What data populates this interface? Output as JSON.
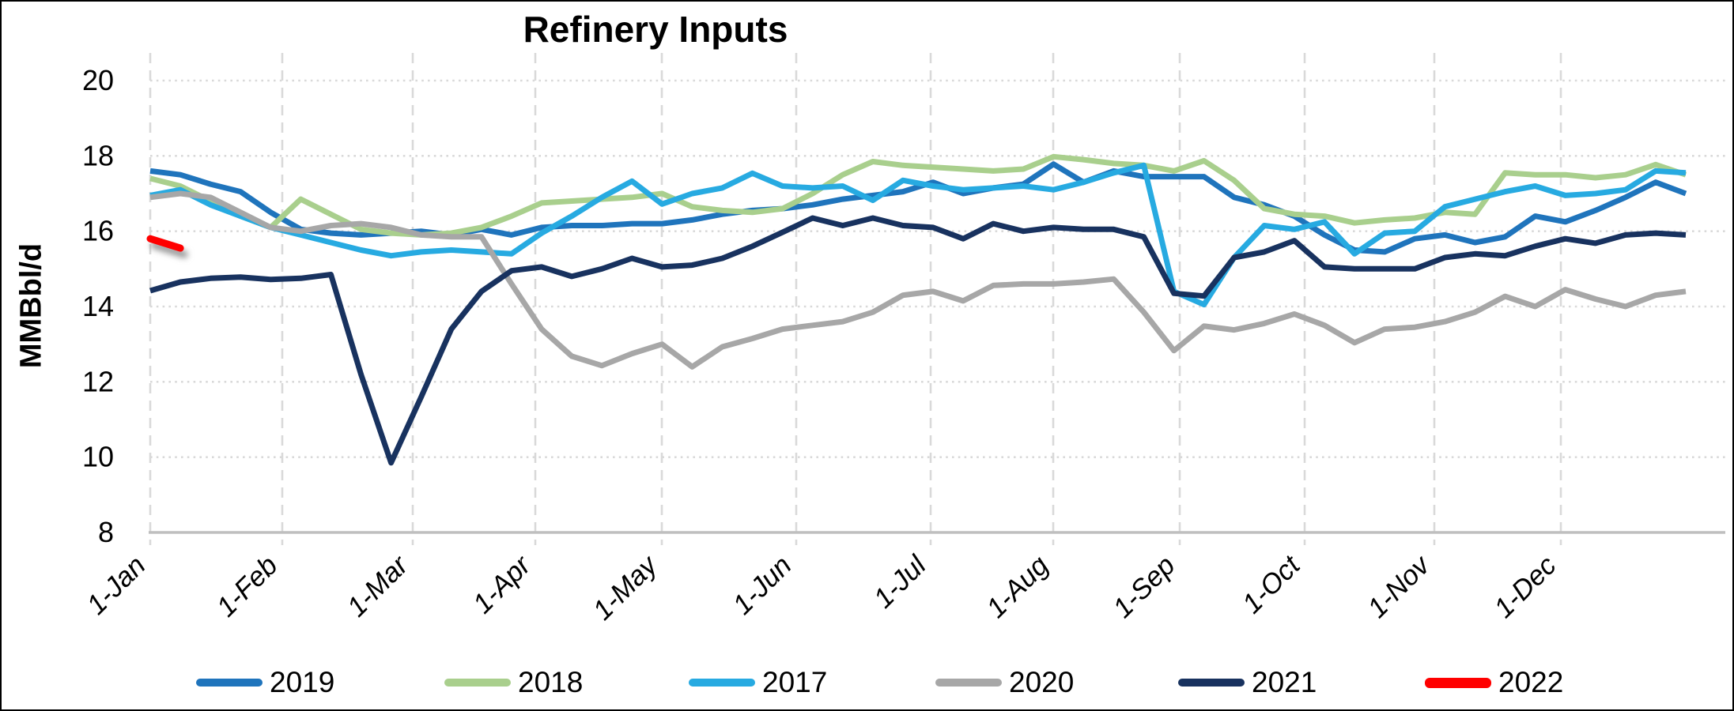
{
  "chart_data": {
    "type": "line",
    "title": "Refinery Inputs",
    "ylabel": "MMBbl/d",
    "ylim": [
      8,
      20
    ],
    "y_ticks": [
      8,
      10,
      12,
      14,
      16,
      18,
      20
    ],
    "x_tick_labels": [
      "1-Jan",
      "1-Feb",
      "1-Mar",
      "1-Apr",
      "1-May",
      "1-Jun",
      "1-Jul",
      "1-Aug",
      "1-Sep",
      "1-Oct",
      "1-Nov",
      "1-Dec"
    ],
    "x_unit": "weekly observations across one year",
    "grid": "vertical dashed monthly gridlines, horizontal dotted gridlines every 2 units",
    "legend_position": "bottom",
    "series": [
      {
        "name": "2019",
        "color": "#1F74BC",
        "values": [
          17.6,
          17.5,
          17.25,
          17.05,
          16.5,
          16.05,
          15.95,
          15.9,
          15.95,
          16.0,
          15.9,
          16.05,
          15.9,
          16.1,
          16.15,
          16.15,
          16.2,
          16.2,
          16.3,
          16.45,
          16.55,
          16.6,
          16.7,
          16.85,
          16.95,
          17.05,
          17.3,
          17.0,
          17.15,
          17.25,
          17.78,
          17.3,
          17.6,
          17.45,
          17.45,
          17.45,
          16.9,
          16.7,
          16.4,
          15.9,
          15.5,
          15.45,
          15.8,
          15.9,
          15.7,
          15.85,
          16.4,
          16.25,
          16.55,
          16.9,
          17.3,
          17.0
        ]
      },
      {
        "name": "2018",
        "color": "#A9CF8D",
        "values": [
          17.4,
          17.2,
          16.8,
          16.4,
          16.1,
          16.85,
          16.45,
          16.05,
          15.95,
          15.9,
          15.95,
          16.1,
          16.4,
          16.75,
          16.8,
          16.85,
          16.9,
          17.0,
          16.65,
          16.55,
          16.5,
          16.6,
          17.0,
          17.5,
          17.85,
          17.75,
          17.7,
          17.65,
          17.6,
          17.65,
          17.98,
          17.9,
          17.8,
          17.75,
          17.6,
          17.87,
          17.35,
          16.6,
          16.45,
          16.4,
          16.22,
          16.3,
          16.35,
          16.5,
          16.45,
          17.55,
          17.5,
          17.5,
          17.42,
          17.5,
          17.77,
          17.5
        ]
      },
      {
        "name": "2017",
        "color": "#27AAE1",
        "values": [
          16.95,
          17.1,
          16.7,
          16.4,
          16.1,
          15.9,
          15.7,
          15.5,
          15.35,
          15.45,
          15.5,
          15.45,
          15.4,
          15.95,
          16.4,
          16.9,
          17.33,
          16.72,
          17.0,
          17.15,
          17.54,
          17.2,
          17.15,
          17.2,
          16.82,
          17.35,
          17.2,
          17.1,
          17.15,
          17.2,
          17.1,
          17.3,
          17.55,
          17.75,
          14.4,
          14.05,
          15.3,
          16.15,
          16.05,
          16.25,
          15.4,
          15.95,
          16.0,
          16.65,
          16.85,
          17.05,
          17.2,
          16.95,
          17.0,
          17.1,
          17.6,
          17.55
        ]
      },
      {
        "name": "2020",
        "color": "#A7A7A7",
        "values": [
          16.9,
          17.0,
          16.9,
          16.5,
          16.1,
          16.0,
          16.15,
          16.2,
          16.1,
          15.9,
          15.85,
          15.85,
          14.6,
          13.4,
          12.68,
          12.43,
          12.75,
          13.0,
          12.4,
          12.93,
          13.15,
          13.4,
          13.5,
          13.6,
          13.85,
          14.3,
          14.4,
          14.15,
          14.56,
          14.6,
          14.6,
          14.65,
          14.73,
          13.85,
          12.83,
          13.48,
          13.38,
          13.55,
          13.8,
          13.5,
          13.04,
          13.4,
          13.45,
          13.6,
          13.85,
          14.27,
          14.0,
          14.45,
          14.2,
          14.0,
          14.3,
          14.4
        ]
      },
      {
        "name": "2021",
        "color": "#18325F",
        "values": [
          14.42,
          14.65,
          14.75,
          14.78,
          14.72,
          14.75,
          14.85,
          12.2,
          9.85,
          11.6,
          13.4,
          14.4,
          14.95,
          15.05,
          14.8,
          15.0,
          15.28,
          15.05,
          15.1,
          15.28,
          15.6,
          15.97,
          16.35,
          16.15,
          16.35,
          16.15,
          16.1,
          15.8,
          16.2,
          16.0,
          16.1,
          16.05,
          16.05,
          15.85,
          14.35,
          14.28,
          15.3,
          15.45,
          15.75,
          15.05,
          15.0,
          15.0,
          15.0,
          15.3,
          15.4,
          15.35,
          15.6,
          15.8,
          15.68,
          15.9,
          15.95,
          15.9
        ]
      },
      {
        "name": "2022",
        "color": "#FF0000",
        "values": [
          15.8,
          15.55
        ],
        "shadow": true
      }
    ]
  }
}
